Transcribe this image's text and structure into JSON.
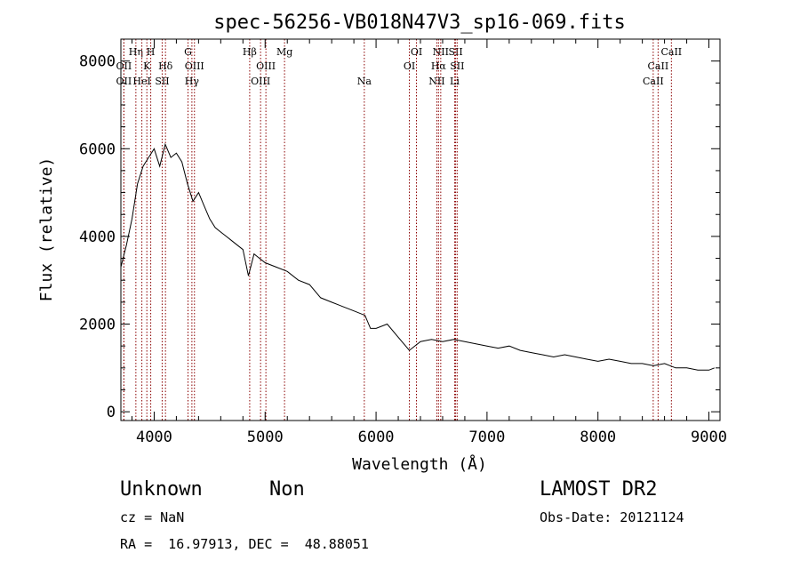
{
  "chart_data": {
    "type": "line",
    "title": "spec-56256-VB018N47V3_sp16-069.fits",
    "xlabel": "Wavelength (Å)",
    "ylabel": "Flux (relative)",
    "xlim": [
      3700,
      9100
    ],
    "ylim": [
      -200,
      8500
    ],
    "x_ticks": [
      4000,
      5000,
      6000,
      7000,
      8000,
      9000
    ],
    "y_ticks": [
      0,
      2000,
      4000,
      6000,
      8000
    ],
    "grid": false,
    "legend": "none",
    "series": [
      {
        "x": [
          3700,
          3750,
          3800,
          3850,
          3900,
          3950,
          4000,
          4050,
          4100,
          4150,
          4200,
          4250,
          4300,
          4350,
          4400,
          4450,
          4500,
          4550,
          4600,
          4650,
          4700,
          4750,
          4800,
          4850,
          4900,
          4950,
          5000,
          5100,
          5200,
          5300,
          5400,
          5500,
          5600,
          5700,
          5800,
          5900,
          5950,
          6000,
          6100,
          6200,
          6300,
          6400,
          6500,
          6600,
          6700,
          6800,
          6900,
          7000,
          7100,
          7200,
          7300,
          7400,
          7500,
          7600,
          7700,
          7800,
          7900,
          8000,
          8100,
          8200,
          8300,
          8400,
          8500,
          8600,
          8700,
          8800,
          8900,
          9000,
          9050
        ],
        "values": [
          3300,
          3800,
          4400,
          5200,
          5600,
          5800,
          6000,
          5600,
          6100,
          5800,
          5900,
          5700,
          5200,
          4800,
          5000,
          4700,
          4400,
          4200,
          4100,
          4000,
          3900,
          3800,
          3700,
          3100,
          3600,
          3500,
          3400,
          3300,
          3200,
          3000,
          2900,
          2600,
          2500,
          2400,
          2300,
          2200,
          1900,
          1900,
          2000,
          1700,
          1400,
          1600,
          1650,
          1600,
          1650,
          1600,
          1550,
          1500,
          1450,
          1500,
          1400,
          1350,
          1300,
          1250,
          1300,
          1250,
          1200,
          1150,
          1200,
          1150,
          1100,
          1100,
          1050,
          1100,
          1000,
          1000,
          950,
          950,
          1000
        ]
      }
    ],
    "lines": [
      {
        "name": "OII",
        "wavelength": 3727,
        "row": 3
      },
      {
        "name": "Hη",
        "wavelength": 3835,
        "row": 1
      },
      {
        "name": "OII",
        "wavelength": 3727,
        "row": 2
      },
      {
        "name": "K",
        "wavelength": 3934,
        "row": 2
      },
      {
        "name": "H",
        "wavelength": 3969,
        "row": 1
      },
      {
        "name": "HeI",
        "wavelength": 3889,
        "row": 3
      },
      {
        "name": "SII",
        "wavelength": 4072,
        "row": 3
      },
      {
        "name": "Hδ",
        "wavelength": 4102,
        "row": 2
      },
      {
        "name": "G",
        "wavelength": 4305,
        "row": 1
      },
      {
        "name": "OIII",
        "wavelength": 4363,
        "row": 2
      },
      {
        "name": "Hγ",
        "wavelength": 4340,
        "row": 3
      },
      {
        "name": "Hβ",
        "wavelength": 4861,
        "row": 1
      },
      {
        "name": "OIII",
        "wavelength": 5007,
        "row": 2
      },
      {
        "name": "OIII",
        "wavelength": 4959,
        "row": 3
      },
      {
        "name": "Mg",
        "wavelength": 5175,
        "row": 1
      },
      {
        "name": "Na",
        "wavelength": 5894,
        "row": 3
      },
      {
        "name": "OI",
        "wavelength": 6364,
        "row": 1
      },
      {
        "name": "OI",
        "wavelength": 6300,
        "row": 2
      },
      {
        "name": "NII",
        "wavelength": 6583,
        "row": 1
      },
      {
        "name": "SII",
        "wavelength": 6717,
        "row": 1
      },
      {
        "name": "Hα",
        "wavelength": 6563,
        "row": 2
      },
      {
        "name": "SII",
        "wavelength": 6731,
        "row": 2
      },
      {
        "name": "NII",
        "wavelength": 6548,
        "row": 3
      },
      {
        "name": "Li",
        "wavelength": 6708,
        "row": 3
      },
      {
        "name": "CaII",
        "wavelength": 8662,
        "row": 1
      },
      {
        "name": "CaII",
        "wavelength": 8542,
        "row": 2
      },
      {
        "name": "CaII",
        "wavelength": 8498,
        "row": 3
      }
    ]
  },
  "info": {
    "object_class": "Unknown",
    "subclass": "Non",
    "survey": "LAMOST DR2",
    "cz": "cz = NaN",
    "obs_date": "Obs-Date: 20121124",
    "coords": "RA =  16.97913, DEC =  48.88051"
  },
  "colors": {
    "line_marker": "#8b0000",
    "spectrum": "#000000"
  }
}
